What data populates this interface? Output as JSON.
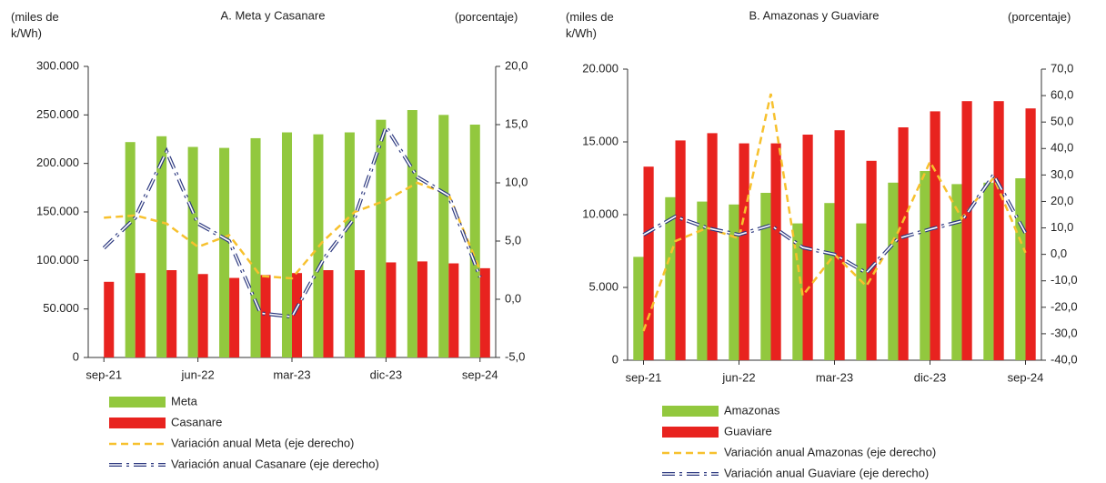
{
  "chart_data": [
    {
      "type": "bar",
      "title": "A. Meta y Casanare",
      "y_label": "(miles de k/Wh)",
      "y2_label": "(porcentaje)",
      "categories": [
        "sep-21",
        null,
        null,
        "jun-22",
        null,
        null,
        "mar-23",
        null,
        null,
        "dic-23",
        null,
        null,
        "sep-24"
      ],
      "series": [
        {
          "name": "Meta",
          "type": "bar",
          "color": "#92c83e",
          "values": [
            null,
            222000,
            228000,
            217000,
            216000,
            226000,
            232000,
            230000,
            232000,
            245000,
            255000,
            250000,
            240000
          ]
        },
        {
          "name": "Casanare",
          "type": "bar",
          "color": "#e8231f",
          "values": [
            78000,
            87000,
            90000,
            86000,
            82000,
            85000,
            87000,
            90000,
            90000,
            98000,
            99000,
            97000,
            92000
          ]
        },
        {
          "name": "Variación anual Meta (eje derecho)",
          "type": "line",
          "axis": "y2",
          "color": "#f7c12e",
          "style": "dashed",
          "values": [
            7.0,
            7.2,
            6.5,
            4.5,
            5.5,
            2.0,
            1.8,
            5.0,
            7.5,
            8.5,
            10.0,
            9.0,
            2.5
          ]
        },
        {
          "name": "Variación anual Casanare (eje derecho)",
          "type": "line",
          "axis": "y2",
          "color": "#2e3a80",
          "style": "double-dashdot",
          "values": [
            4.4,
            7.0,
            12.7,
            6.5,
            5.0,
            -1.2,
            -1.5,
            3.4,
            7.0,
            14.8,
            10.5,
            8.9,
            1.9
          ]
        }
      ],
      "ylim": [
        0,
        300000
      ],
      "yticks": [
        0,
        {
          "value": 50000,
          "label": "50.000"
        },
        {
          "value": 100000,
          "label": "100.000"
        },
        {
          "value": 150000,
          "label": "150.000"
        },
        {
          "value": 200000,
          "label": "200.000"
        },
        {
          "value": 250000,
          "label": "250.000"
        },
        {
          "value": 300000,
          "label": "300.000"
        }
      ],
      "y2lim": [
        -5,
        20
      ],
      "y2ticks": [
        {
          "value": -5,
          "label": "-5,0"
        },
        {
          "value": 0,
          "label": "0,0"
        },
        {
          "value": 5,
          "label": "5,0"
        },
        {
          "value": 10,
          "label": "10,0"
        },
        {
          "value": 15,
          "label": "15,0"
        },
        {
          "value": 20,
          "label": "20,0"
        }
      ],
      "grid": false
    },
    {
      "type": "bar",
      "title": "B. Amazonas y Guaviare",
      "y_label": "(miles de k/Wh)",
      "y2_label": "(porcentaje)",
      "categories": [
        "sep-21",
        null,
        null,
        "jun-22",
        null,
        null,
        "mar-23",
        null,
        null,
        "dic-23",
        null,
        null,
        "sep-24"
      ],
      "series": [
        {
          "name": "Amazonas",
          "type": "bar",
          "color": "#92c83e",
          "values": [
            7100,
            11200,
            10900,
            10700,
            11500,
            9400,
            10800,
            9400,
            12200,
            13000,
            12100,
            12200,
            12500
          ]
        },
        {
          "name": "Guaviare",
          "type": "bar",
          "color": "#e8231f",
          "values": [
            13300,
            15100,
            15600,
            14900,
            14900,
            15500,
            15800,
            13700,
            16000,
            17100,
            17800,
            17800,
            17300
          ]
        },
        {
          "name": "Variación anual Amazonas (eje derecho)",
          "type": "line",
          "axis": "y2",
          "color": "#f7c12e",
          "style": "dashed",
          "values": [
            -29,
            5,
            10,
            6,
            60.7,
            -15.6,
            0,
            -12,
            8.5,
            35,
            13.6,
            29,
            0.6
          ]
        },
        {
          "name": "Variación anual Guaviare (eje derecho)",
          "type": "line",
          "axis": "y2",
          "color": "#2e3a80",
          "style": "double-dashdot",
          "values": [
            7.4,
            14.3,
            10,
            7.4,
            11,
            2.6,
            0,
            -7,
            6,
            9.5,
            12.6,
            30,
            8
          ]
        }
      ],
      "ylim": [
        0,
        20000
      ],
      "yticks": [
        0,
        {
          "value": 5000,
          "label": "5.000"
        },
        {
          "value": 10000,
          "label": "10.000"
        },
        {
          "value": 15000,
          "label": "15.000"
        },
        {
          "value": 20000,
          "label": "20.000"
        }
      ],
      "y2lim": [
        -40,
        70
      ],
      "y2ticks": [
        {
          "value": -40,
          "label": "-40,0"
        },
        {
          "value": -30,
          "label": "-30,0"
        },
        {
          "value": -20,
          "label": "-20,0"
        },
        {
          "value": -10,
          "label": "-10,0"
        },
        {
          "value": 0,
          "label": "0,0"
        },
        {
          "value": 10,
          "label": "10,0"
        },
        {
          "value": 20,
          "label": "20,0"
        },
        {
          "value": 30,
          "label": "30,0"
        },
        {
          "value": 40,
          "label": "40,0"
        },
        {
          "value": 50,
          "label": "50,0"
        },
        {
          "value": 60,
          "label": "60,0"
        },
        {
          "value": 70,
          "label": "70,0"
        }
      ],
      "grid": false
    }
  ]
}
